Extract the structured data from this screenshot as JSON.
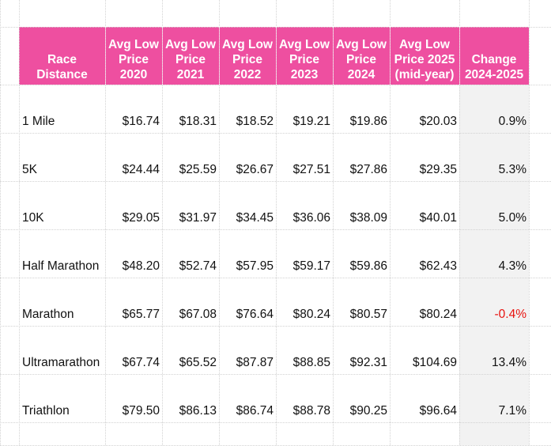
{
  "headers": [
    "Race\nDistance",
    "Avg Low\nPrice\n2020",
    "Avg Low\nPrice\n2021",
    "Avg Low\nPrice\n2022",
    "Avg Low\nPrice\n2023",
    "Avg Low\nPrice\n2024",
    "Avg Low\nPrice 2025\n(mid-year)",
    "Change\n2024-2025"
  ],
  "rows": [
    {
      "distance": "1 Mile",
      "p2020": "$16.74",
      "p2021": "$18.31",
      "p2022": "$18.52",
      "p2023": "$19.21",
      "p2024": "$19.86",
      "p2025": "$20.03",
      "change": "0.9%",
      "negative": false
    },
    {
      "distance": "5K",
      "p2020": "$24.44",
      "p2021": "$25.59",
      "p2022": "$26.67",
      "p2023": "$27.51",
      "p2024": "$27.86",
      "p2025": "$29.35",
      "change": "5.3%",
      "negative": false
    },
    {
      "distance": "10K",
      "p2020": "$29.05",
      "p2021": "$31.97",
      "p2022": "$34.45",
      "p2023": "$36.06",
      "p2024": "$38.09",
      "p2025": "$40.01",
      "change": "5.0%",
      "negative": false
    },
    {
      "distance": "Half Marathon",
      "p2020": "$48.20",
      "p2021": "$52.74",
      "p2022": "$57.95",
      "p2023": "$59.17",
      "p2024": "$59.86",
      "p2025": "$62.43",
      "change": "4.3%",
      "negative": false
    },
    {
      "distance": "Marathon",
      "p2020": "$65.77",
      "p2021": "$67.08",
      "p2022": "$76.64",
      "p2023": "$80.24",
      "p2024": "$80.57",
      "p2025": "$80.24",
      "change": "-0.4%",
      "negative": true
    },
    {
      "distance": "Ultramarathon",
      "p2020": "$67.74",
      "p2021": "$65.52",
      "p2022": "$87.87",
      "p2023": "$88.85",
      "p2024": "$92.31",
      "p2025": "$104.69",
      "change": "13.4%",
      "negative": false
    },
    {
      "distance": "Triathlon",
      "p2020": "$79.50",
      "p2021": "$86.13",
      "p2022": "$86.74",
      "p2023": "$88.78",
      "p2024": "$90.25",
      "p2025": "$96.64",
      "change": "7.1%",
      "negative": false
    }
  ],
  "colors": {
    "header_bg": "#ee4fa0",
    "header_text": "#ffffff",
    "negative": "#e8130f",
    "change_bg": "#f2f2f2"
  }
}
